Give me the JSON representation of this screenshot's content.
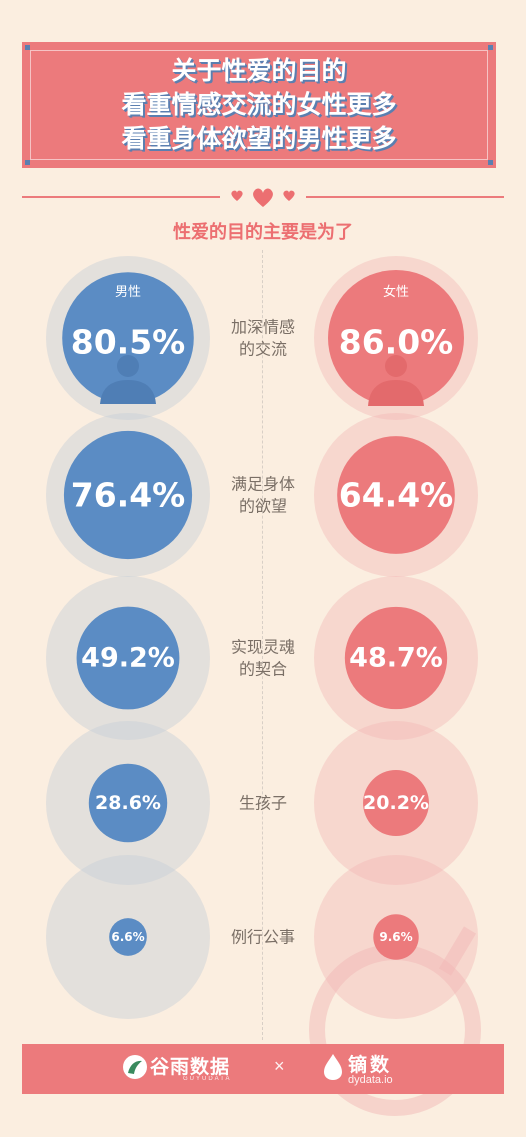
{
  "header": {
    "title": "关于性爱的目的\n看重情感交流的女性更多\n看重身体欲望的男性更多",
    "subtitle": "性爱的目的主要是为了"
  },
  "colors": {
    "male": "#5b8cc4",
    "female": "#ec7a7c",
    "background": "#fbeee0",
    "accent": "#ec7a7c"
  },
  "chart_data": {
    "type": "bubble-comparison",
    "title": "性爱的目的主要是为了",
    "series": [
      {
        "name": "男性",
        "icon": "male-person-icon",
        "color": "#5b8cc4"
      },
      {
        "name": "女性",
        "icon": "female-person-icon",
        "color": "#ec7a7c"
      }
    ],
    "categories": [
      "加深情感\n的交流",
      "满足身体\n的欲望",
      "实现灵魂\n的契合",
      "生孩子",
      "例行公事"
    ],
    "male": [
      80.5,
      76.4,
      49.2,
      28.6,
      6.6
    ],
    "female": [
      86.0,
      64.4,
      48.7,
      20.2,
      9.6
    ],
    "labels_male": [
      "80.5%",
      "76.4%",
      "49.2%",
      "28.6%",
      "6.6%"
    ],
    "labels_female": [
      "86.0%",
      "64.4%",
      "48.7%",
      "20.2%",
      "9.6%"
    ]
  },
  "footer": {
    "brand1": "谷雨数据",
    "brand1_sub": "GUYUDATA",
    "separator": "×",
    "brand2": "镝数",
    "brand2_sub": "dydata.io"
  }
}
